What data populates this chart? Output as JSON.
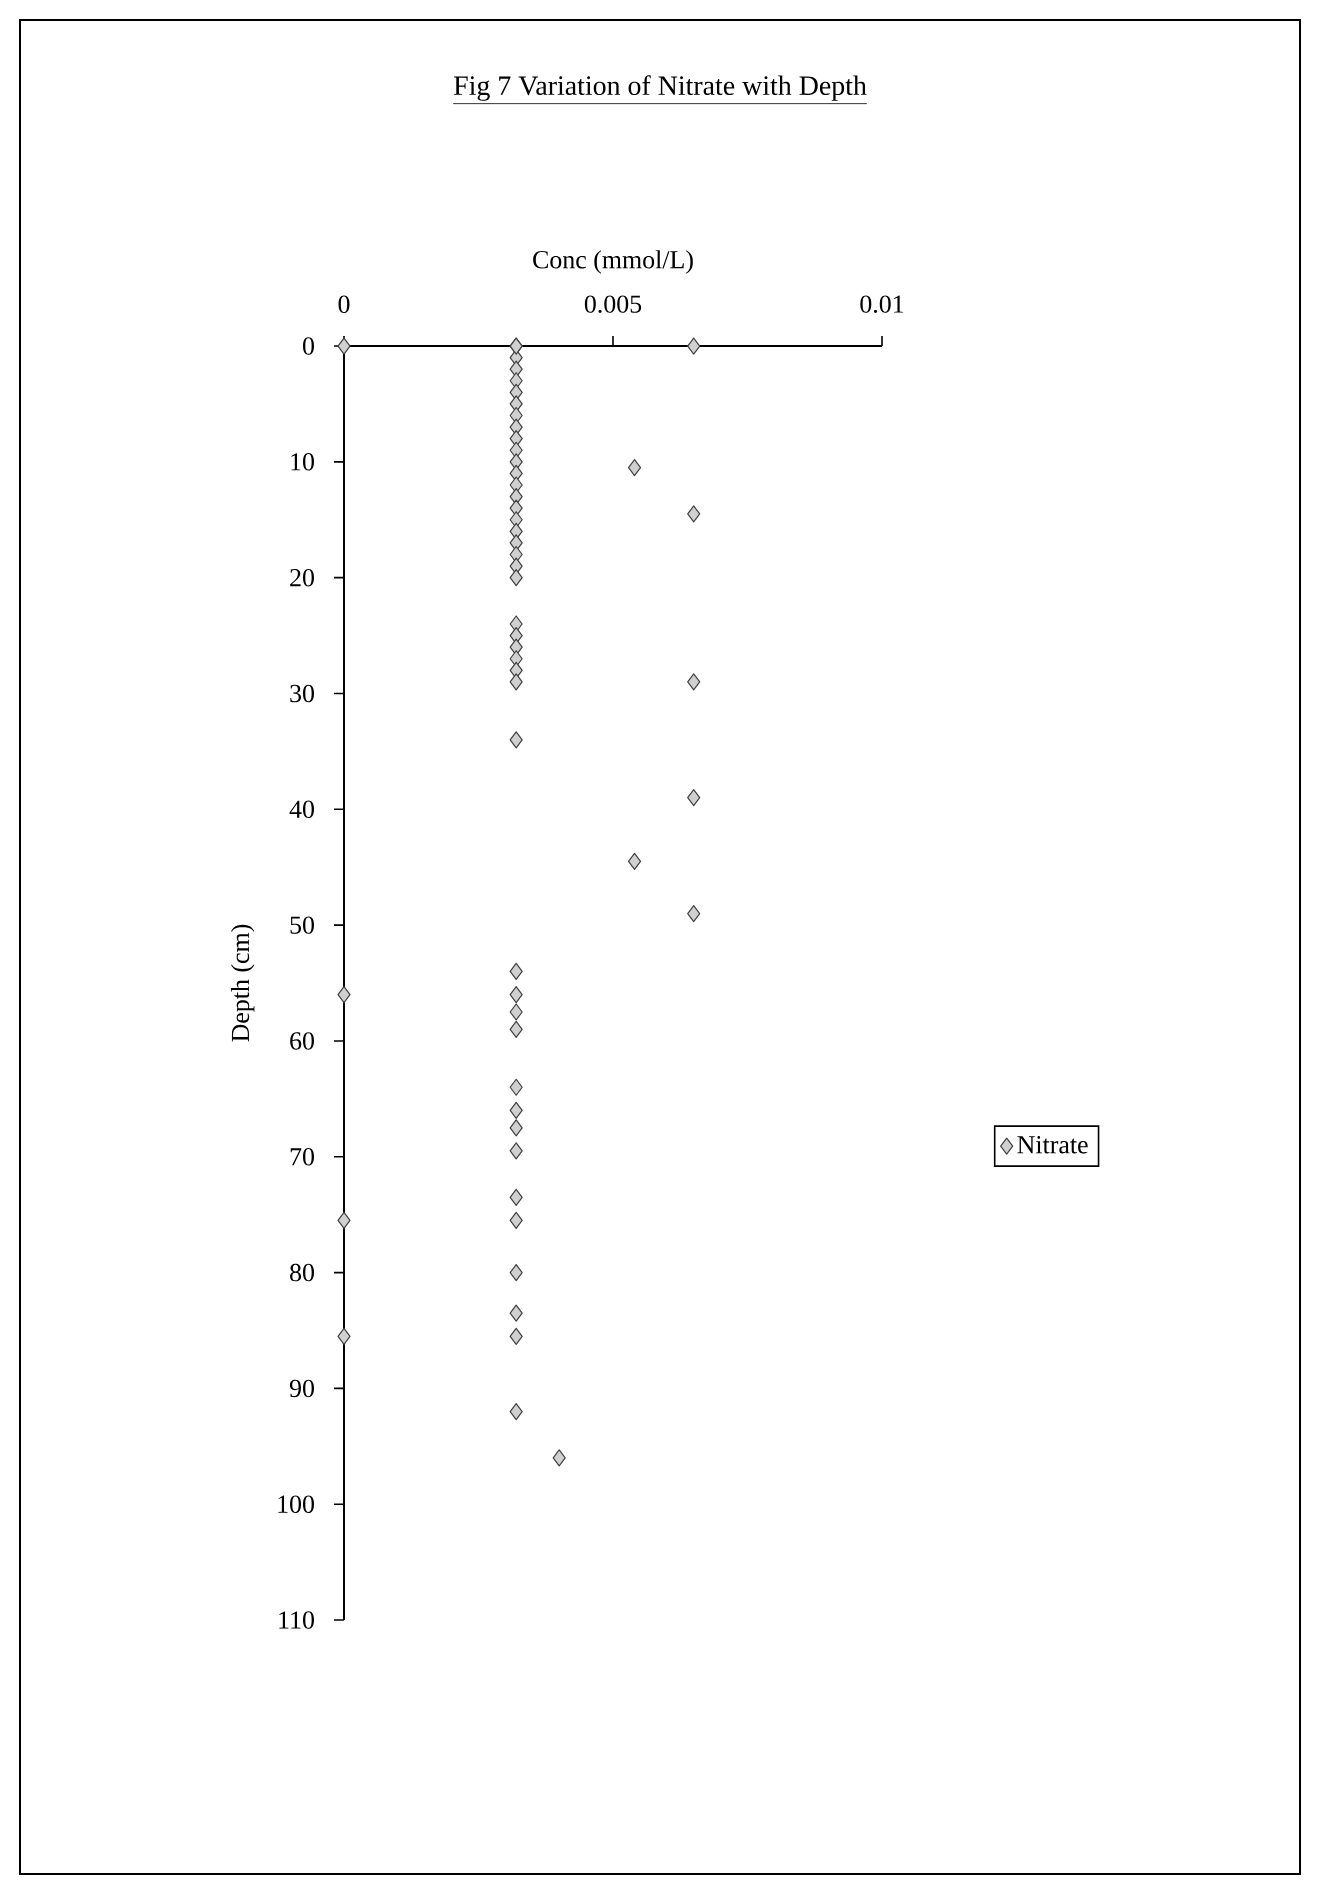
{
  "chart_data": {
    "type": "scatter",
    "title": "Fig 7 Variation of Nitrate with Depth",
    "xlabel": "Conc (mmol/L)",
    "ylabel": "Depth (cm)",
    "xlim": [
      0,
      0.01
    ],
    "xticks": [
      0,
      0.005,
      0.01
    ],
    "ylim": [
      110,
      0
    ],
    "yticks": [
      0,
      10,
      20,
      30,
      40,
      50,
      60,
      70,
      80,
      90,
      100,
      110
    ],
    "marker": "diamond",
    "legend": "right",
    "series": [
      {
        "name": "Nitrate",
        "color": "#d0d0d0",
        "x": [
          0.0032,
          0.0032,
          0.0032,
          0.0032,
          0.0032,
          0.0032,
          0.0032,
          0.0032,
          0.0032,
          0.0032,
          0.0032,
          0.0032,
          0.0032,
          0.0032,
          0.0032,
          0.0032,
          0.0032,
          0.0032,
          0.0032,
          0.0032,
          0.0032,
          0.0032,
          0.0032,
          0.0032,
          0.0032,
          0.0032,
          0.0032,
          0.0032,
          0.0032,
          0.0032,
          0.0032,
          0.0032,
          0.0032,
          0.0032,
          0.0032,
          0.0032,
          0.0032,
          0.0032,
          0.0032,
          0.0032,
          0.0032,
          0.0032,
          0.0032,
          0,
          0,
          0,
          0,
          0.0065,
          0.0065,
          0.0065,
          0.0065,
          0.0065,
          0.0054,
          0.0054,
          0.004
        ],
        "values": [
          0,
          1,
          2,
          3,
          4,
          5,
          6,
          7,
          8,
          9,
          10,
          11,
          12,
          13,
          14,
          15,
          16,
          17,
          18,
          19,
          20,
          24,
          25,
          26,
          27,
          28,
          29,
          34,
          54,
          56,
          57.5,
          59,
          64,
          66,
          67.5,
          69.5,
          73.5,
          75.5,
          80,
          83.5,
          85.5,
          92,
          0,
          0,
          56,
          75.5,
          85.5,
          0,
          14.5,
          29,
          39,
          49,
          10.5,
          44.5,
          96
        ]
      }
    ]
  }
}
